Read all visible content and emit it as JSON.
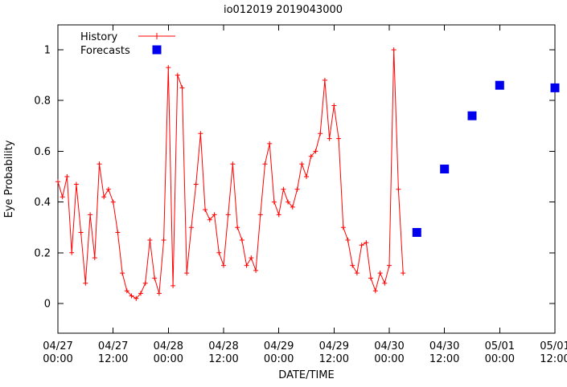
{
  "title": "io012019 2019043000",
  "axes": {
    "xlabel": "DATE/TIME",
    "ylabel": "Eye Probability",
    "y_ticks": [
      "0",
      "0.2",
      "0.4",
      "0.6",
      "0.8",
      "1"
    ],
    "x_ticks": [
      {
        "date": "04/27",
        "time": "00:00"
      },
      {
        "date": "04/27",
        "time": "12:00"
      },
      {
        "date": "04/28",
        "time": "00:00"
      },
      {
        "date": "04/28",
        "time": "12:00"
      },
      {
        "date": "04/29",
        "time": "00:00"
      },
      {
        "date": "04/29",
        "time": "12:00"
      },
      {
        "date": "04/30",
        "time": "00:00"
      },
      {
        "date": "04/30",
        "time": "12:00"
      },
      {
        "date": "05/01",
        "time": "00:00"
      },
      {
        "date": "05/01",
        "time": "12:00"
      }
    ]
  },
  "legend": {
    "history_label": "History",
    "forecasts_label": "Forecasts"
  },
  "colors": {
    "history": "#ff0000",
    "forecast": "#0000ee",
    "axis": "#000000"
  },
  "chart_data": {
    "type": "line",
    "title": "io012019 2019043000",
    "xlabel": "DATE/TIME",
    "ylabel": "Eye Probability",
    "x_axis": {
      "start": "04/27 00:00",
      "end": "05/01 12:00",
      "tick_interval_hours": 12,
      "range_hours": [
        0,
        108
      ]
    },
    "ylim": [
      -0.115,
      1.1
    ],
    "y_tick_values": [
      0,
      0.2,
      0.4,
      0.6,
      0.8,
      1
    ],
    "grid": false,
    "legend_position": "top-left-inside",
    "series": [
      {
        "name": "History",
        "style": "line-with-plus-markers",
        "color": "#ff0000",
        "x_start_hour": 0,
        "x_step_hours": 1,
        "values": [
          0.48,
          0.42,
          0.5,
          0.2,
          0.47,
          0.28,
          0.08,
          0.35,
          0.18,
          0.55,
          0.42,
          0.45,
          0.4,
          0.28,
          0.12,
          0.05,
          0.03,
          0.02,
          0.04,
          0.08,
          0.25,
          0.1,
          0.04,
          0.25,
          0.93,
          0.07,
          0.9,
          0.85,
          0.12,
          0.3,
          0.47,
          0.67,
          0.37,
          0.33,
          0.35,
          0.2,
          0.15,
          0.35,
          0.55,
          0.3,
          0.25,
          0.15,
          0.18,
          0.13,
          0.35,
          0.55,
          0.63,
          0.4,
          0.35,
          0.45,
          0.4,
          0.38,
          0.45,
          0.55,
          0.5,
          0.58,
          0.6,
          0.67,
          0.88,
          0.65,
          0.78,
          0.65,
          0.3,
          0.25,
          0.15,
          0.12,
          0.23,
          0.24,
          0.1,
          0.05,
          0.12,
          0.08,
          0.15,
          1.0,
          0.45,
          0.12
        ]
      },
      {
        "name": "Forecasts",
        "style": "filled-squares",
        "color": "#0000ee",
        "points": [
          {
            "datetime": "04/30 06:00",
            "hour": 78,
            "value": 0.28
          },
          {
            "datetime": "04/30 12:00",
            "hour": 84,
            "value": 0.53
          },
          {
            "datetime": "04/30 18:00",
            "hour": 90,
            "value": 0.74
          },
          {
            "datetime": "05/01 00:00",
            "hour": 96,
            "value": 0.86
          },
          {
            "datetime": "05/01 12:00",
            "hour": 108,
            "value": 0.85
          }
        ]
      }
    ]
  }
}
